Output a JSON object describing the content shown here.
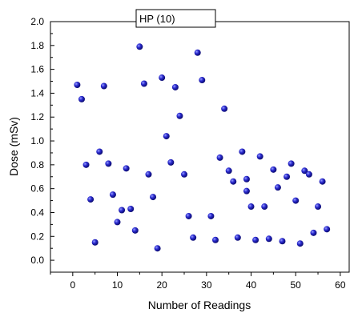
{
  "chart_data": {
    "type": "scatter",
    "xlabel": "Number of Readings",
    "ylabel": "Dose (mSv)",
    "xlim": [
      -5,
      62
    ],
    "ylim": [
      -0.1,
      2.0
    ],
    "xticks": [
      0,
      10,
      20,
      30,
      40,
      50,
      60
    ],
    "xtick_labels": [
      "0",
      "10",
      "20",
      "30",
      "40",
      "50",
      "60"
    ],
    "yticks": [
      0.0,
      0.2,
      0.4,
      0.6,
      0.8,
      1.0,
      1.2,
      1.4,
      1.6,
      1.8,
      2.0
    ],
    "ytick_labels": [
      "0.0",
      "0.2",
      "0.4",
      "0.6",
      "0.8",
      "1.0",
      "1.2",
      "1.4",
      "1.6",
      "1.8",
      "2.0"
    ],
    "grid": false,
    "legend_position": "top-center",
    "marker_color": "#1a1aa8",
    "series": [
      {
        "name": "HP (10)",
        "x": [
          1,
          2,
          3,
          4,
          5,
          6,
          7,
          8,
          9,
          10,
          11,
          12,
          13,
          14,
          15,
          16,
          17,
          18,
          19,
          20,
          21,
          22,
          23,
          24,
          25,
          26,
          27,
          28,
          29,
          31,
          32,
          33,
          34,
          35,
          36,
          37,
          38,
          39,
          39,
          40,
          41,
          42,
          43,
          44,
          45,
          46,
          47,
          48,
          49,
          50,
          51,
          52,
          53,
          54,
          55,
          56,
          57
        ],
        "y": [
          1.47,
          1.35,
          0.8,
          0.51,
          0.15,
          0.91,
          1.46,
          0.81,
          0.55,
          0.32,
          0.42,
          0.77,
          0.43,
          0.25,
          1.79,
          1.48,
          0.72,
          0.53,
          0.1,
          1.53,
          1.04,
          0.82,
          1.45,
          1.21,
          0.72,
          0.37,
          0.19,
          1.74,
          1.51,
          0.37,
          0.17,
          0.86,
          1.27,
          0.75,
          0.66,
          0.19,
          0.91,
          0.68,
          0.58,
          0.45,
          0.17,
          0.87,
          0.45,
          0.18,
          0.76,
          0.61,
          0.16,
          0.7,
          0.81,
          0.5,
          0.14,
          0.75,
          0.72,
          0.23,
          0.45,
          0.66,
          0.26
        ]
      }
    ]
  }
}
